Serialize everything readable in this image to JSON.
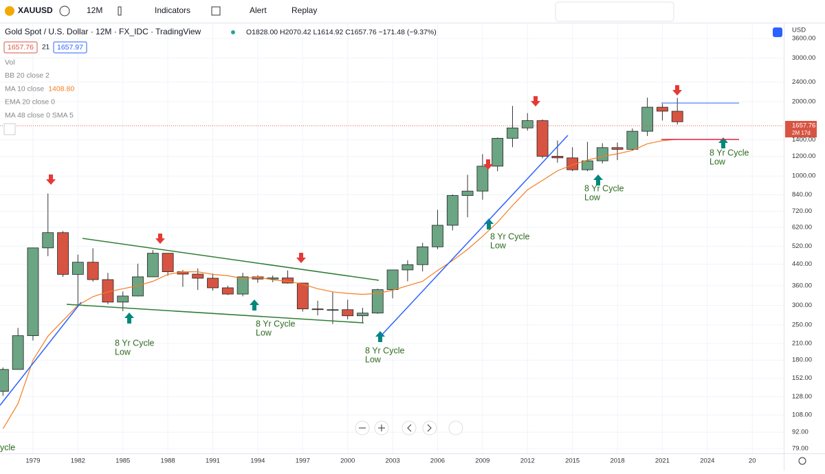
{
  "toolbar": {
    "symbol": "XAUUSD",
    "interval": "12M",
    "indicators": "Indicators",
    "alert": "Alert",
    "replay": "Replay"
  },
  "legend": {
    "title": "Gold Spot / U.S. Dollar · 12M · FX_IDC · TradingView",
    "ohlc": "O1828.00 H2070.42 L1614.92 C1657.76 −171.48 (−9.37%)",
    "bid": "1657.76",
    "spread": "21",
    "ask": "1657.97"
  },
  "indicators": [
    {
      "name": "Vol"
    },
    {
      "name": "BB 20 close 2"
    },
    {
      "name": "MA 10 close",
      "value": "1408.80"
    },
    {
      "name": "EMA 20 close 0"
    },
    {
      "name": "MA 48 close 0 SMA 5"
    }
  ],
  "price_axis": {
    "currency": "USD",
    "last_price": "1657.76",
    "countdown": "2M 17d"
  },
  "chart_data": {
    "type": "candlestick",
    "log_scale": true,
    "grid": true,
    "x": [
      1977,
      1978,
      1979,
      1980,
      1981,
      1982,
      1983,
      1984,
      1985,
      1986,
      1987,
      1988,
      1989,
      1990,
      1991,
      1992,
      1993,
      1994,
      1995,
      1996,
      1997,
      1998,
      1999,
      2000,
      2001,
      2002,
      2003,
      2004,
      2005,
      2006,
      2007,
      2008,
      2009,
      2010,
      2011,
      2012,
      2013,
      2014,
      2015,
      2016,
      2017,
      2018,
      2019,
      2020,
      2021,
      2022
    ],
    "open": [
      134.5,
      165,
      226,
      512,
      590,
      400,
      448,
      381,
      309,
      327,
      391,
      487,
      410,
      401,
      386,
      353,
      333,
      391,
      383,
      387,
      369,
      290,
      288,
      288,
      272,
      279,
      347,
      417,
      438,
      517,
      632,
      834,
      869,
      1096,
      1421,
      1565,
      1675,
      1202,
      1184,
      1060,
      1152,
      1303,
      1282,
      1517,
      1898,
      1828
    ],
    "high": [
      168,
      243,
      512,
      850,
      599,
      481,
      510,
      406,
      341,
      442,
      502,
      485,
      417,
      423,
      403,
      360,
      406,
      397,
      396,
      415,
      368,
      313,
      339,
      316,
      293,
      350,
      416,
      456,
      537,
      730,
      842,
      1011,
      1226,
      1431,
      1921,
      1796,
      1694,
      1392,
      1308,
      1375,
      1357,
      1366,
      1557,
      2075,
      1959,
      2070.42
    ],
    "low": [
      129,
      165,
      216,
      474,
      391,
      297,
      374,
      303,
      284,
      326,
      390,
      395,
      356,
      346,
      344,
      330,
      326,
      370,
      372,
      367,
      283,
      273,
      252,
      263,
      255,
      277,
      320,
      375,
      411,
      506,
      603,
      681,
      802,
      1045,
      1308,
      1527,
      1180,
      1132,
      1046,
      1046,
      1124,
      1160,
      1266,
      1451,
      1677,
      1614.92
    ],
    "close": [
      165,
      226,
      512,
      590,
      400,
      448,
      381,
      309,
      327,
      391,
      487,
      410,
      401,
      386,
      353,
      333,
      391,
      383,
      387,
      369,
      290,
      288,
      288,
      272,
      279,
      347,
      417,
      438,
      517,
      632,
      834,
      869,
      1096,
      1421,
      1565,
      1675,
      1202,
      1184,
      1060,
      1152,
      1303,
      1282,
      1517,
      1898,
      1829,
      1657.76
    ],
    "up_color": "#6ba583",
    "down_color": "#d75442",
    "series": [
      {
        "name": "MA 10 close",
        "color": "#f57c1f",
        "values": [
          95,
          120,
          180,
          225,
          260,
          300,
          325,
          340,
          350,
          360,
          375,
          400,
          410,
          410,
          400,
          395,
          385,
          390,
          380,
          375,
          365,
          350,
          340,
          335,
          332,
          335,
          345,
          360,
          375,
          415,
          455,
          505,
          570,
          650,
          760,
          880,
          960,
          1050,
          1110,
          1160,
          1200,
          1230,
          1270,
          1350,
          1390,
          1408.8
        ]
      }
    ],
    "xlim": [
      1976.8,
      2029.1
    ],
    "xticks": [
      1979,
      1982,
      1985,
      1988,
      1991,
      1994,
      1997,
      2000,
      2003,
      2006,
      2009,
      2012,
      2015,
      2018,
      2021,
      2024,
      {
        "value": 2027,
        "label": "20"
      }
    ],
    "ylim": [
      75.5,
      4145
    ],
    "yticks": [
      {
        "value": 3600,
        "label": "3600.00"
      },
      {
        "value": 3000,
        "label": "3000.00"
      },
      {
        "value": 2400,
        "label": "2400.00"
      },
      {
        "value": 2000,
        "label": "2000.00"
      },
      {
        "value": 1400,
        "label": "1400.00"
      },
      {
        "value": 1200,
        "label": "1200.00"
      },
      {
        "value": 1000,
        "label": "1000.00"
      },
      {
        "value": 840,
        "label": "840.00"
      },
      {
        "value": 720,
        "label": "720.00"
      },
      {
        "value": 620,
        "label": "620.00"
      },
      {
        "value": 520,
        "label": "520.00"
      },
      {
        "value": 440,
        "label": "440.00"
      },
      {
        "value": 360,
        "label": "360.00"
      },
      {
        "value": 300,
        "label": "300.00"
      },
      {
        "value": 250,
        "label": "250.00"
      },
      {
        "value": 210,
        "label": "210.00"
      },
      {
        "value": 180,
        "label": "180.00"
      },
      {
        "value": 152,
        "label": "152.00"
      },
      {
        "value": 128,
        "label": "128.00"
      },
      {
        "value": 108,
        "label": "108.00"
      },
      {
        "value": 92,
        "label": "92.00"
      },
      {
        "value": 79,
        "label": "79.00"
      }
    ],
    "annotations": [
      {
        "lines": [
          "8 Yr Cycle",
          "Low"
        ]
      },
      {
        "lines": [
          "8 Yr Cycle",
          "Low"
        ]
      },
      {
        "lines": [
          "8 Yr Cycle",
          "Low"
        ]
      },
      {
        "lines": [
          "8 Yr Cycle",
          "Low"
        ]
      },
      {
        "lines": [
          "8 Yr Cycle",
          "Low"
        ]
      },
      {
        "lines": [
          "8 Yr Cycle",
          "Low"
        ]
      },
      {
        "lines": [
          "ycle"
        ]
      }
    ]
  }
}
